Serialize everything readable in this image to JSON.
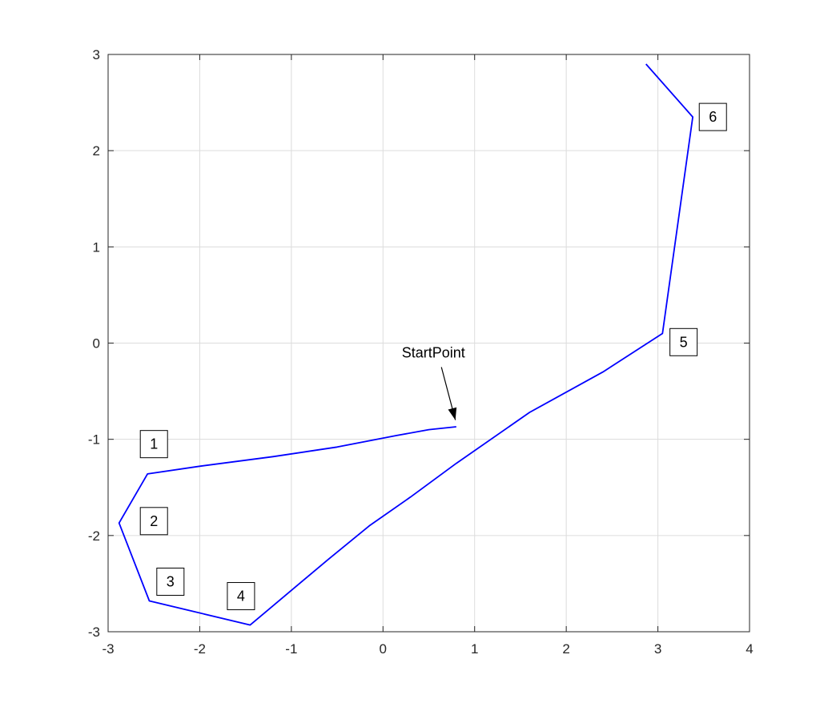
{
  "chart_data": {
    "type": "line",
    "xlim": [
      -3,
      4
    ],
    "ylim": [
      -3,
      3
    ],
    "grid": true,
    "x_ticks": [
      "-3",
      "-2",
      "-1",
      "0",
      "1",
      "2",
      "3",
      "4"
    ],
    "y_ticks": [
      "3",
      "2",
      "1",
      "0",
      "-1",
      "-2",
      "-3"
    ],
    "line_color": "#0000ff",
    "series": [
      {
        "x": [
          0.8,
          0.5,
          0.15,
          -0.5,
          -1.2,
          -2.0,
          -2.57,
          -2.88,
          -2.55,
          -1.45,
          -0.6,
          -0.15,
          0.3,
          0.8,
          1.6,
          2.4,
          3.05,
          3.38,
          2.87
        ],
        "y": [
          -0.87,
          -0.9,
          -0.96,
          -1.08,
          -1.18,
          -1.28,
          -1.36,
          -1.87,
          -2.68,
          -2.93,
          -2.25,
          -1.9,
          -1.6,
          -1.25,
          -0.72,
          -0.3,
          0.1,
          2.35,
          2.9
        ]
      }
    ],
    "labels": [
      {
        "text": "1",
        "x": -2.5,
        "y": -1.05
      },
      {
        "text": "2",
        "x": -2.5,
        "y": -1.85
      },
      {
        "text": "3",
        "x": -2.32,
        "y": -2.48
      },
      {
        "text": "4",
        "x": -1.55,
        "y": -2.63
      },
      {
        "text": "5",
        "x": 3.28,
        "y": 0.01
      },
      {
        "text": "6",
        "x": 3.6,
        "y": 2.35
      }
    ],
    "annotation": {
      "text": "StartPoint",
      "text_x": 0.55,
      "text_y": -0.15,
      "arrow_tip_x": 0.79,
      "arrow_tip_y": -0.8
    }
  }
}
